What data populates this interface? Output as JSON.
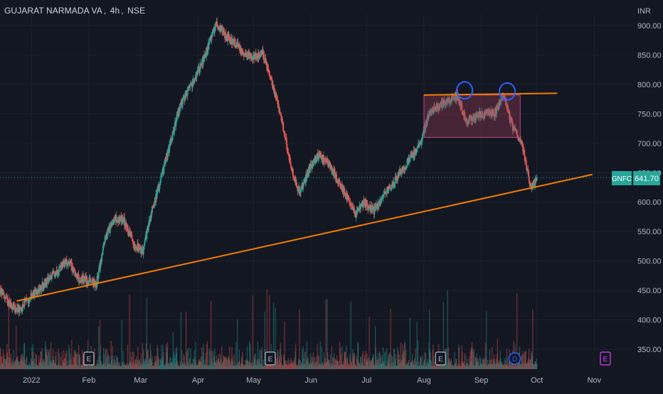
{
  "header": {
    "symbol": "GUJARAT NARMADA VA",
    "interval": "4h",
    "exchange": "NSE"
  },
  "price_axis": {
    "currency": "INR",
    "ticks": [
      "900.00",
      "850.00",
      "800.00",
      "750.00",
      "700.00",
      "650.00",
      "600.00",
      "550.00",
      "500.00",
      "450.00",
      "400.00",
      "350.00"
    ]
  },
  "time_axis": {
    "ticks": [
      "2022",
      "Feb",
      "Mar",
      "Apr",
      "May",
      "Jun",
      "Jul",
      "Aug",
      "Sep",
      "Oct",
      "Nov"
    ]
  },
  "last_price": {
    "ticker": "GNFC",
    "value": "641.70",
    "price": 641.7
  },
  "earnings_markers": [
    {
      "label": "E",
      "date": "2022-02-01",
      "color": "#b2b5be"
    },
    {
      "label": "E",
      "date": "2022-05-10",
      "color": "#b2b5be"
    },
    {
      "label": "E",
      "date": "2022-08-10",
      "color": "#b2b5be"
    },
    {
      "label": "D",
      "date": "2022-09-19",
      "color": "#2962ff"
    },
    {
      "label": "E",
      "date": "2022-11-07",
      "color": "#e040fb"
    }
  ],
  "colors": {
    "background": "#131722",
    "up": "#26a69a",
    "down": "#ef5350",
    "trendline": "#f57c00",
    "box_fill": "#a23b5a",
    "marker_circle": "#2962ff",
    "last_price_bg": "#26a69a"
  },
  "chart_data": {
    "type": "candlestick",
    "title": "GUJARAT NARMADA VA, 4h, NSE",
    "ylabel": "INR",
    "ylim": [
      320,
      925
    ],
    "xlim": [
      "2021-12-15",
      "2022-11-22"
    ],
    "series": [
      {
        "date": "2021-12-15",
        "close": 450
      },
      {
        "date": "2021-12-20",
        "close": 428
      },
      {
        "date": "2021-12-25",
        "close": 415
      },
      {
        "date": "2022-01-01",
        "close": 440
      },
      {
        "date": "2022-01-06",
        "close": 455
      },
      {
        "date": "2022-01-11",
        "close": 470
      },
      {
        "date": "2022-01-16",
        "close": 488
      },
      {
        "date": "2022-01-21",
        "close": 500
      },
      {
        "date": "2022-01-26",
        "close": 472
      },
      {
        "date": "2022-01-31",
        "close": 467
      },
      {
        "date": "2022-02-05",
        "close": 460
      },
      {
        "date": "2022-02-10",
        "close": 540
      },
      {
        "date": "2022-02-15",
        "close": 572
      },
      {
        "date": "2022-02-20",
        "close": 568
      },
      {
        "date": "2022-02-25",
        "close": 530
      },
      {
        "date": "2022-03-02",
        "close": 515
      },
      {
        "date": "2022-03-07",
        "close": 585
      },
      {
        "date": "2022-03-12",
        "close": 640
      },
      {
        "date": "2022-03-17",
        "close": 700
      },
      {
        "date": "2022-03-22",
        "close": 760
      },
      {
        "date": "2022-03-27",
        "close": 790
      },
      {
        "date": "2022-04-01",
        "close": 820
      },
      {
        "date": "2022-04-06",
        "close": 860
      },
      {
        "date": "2022-04-11",
        "close": 905
      },
      {
        "date": "2022-04-16",
        "close": 882
      },
      {
        "date": "2022-04-21",
        "close": 870
      },
      {
        "date": "2022-04-26",
        "close": 852
      },
      {
        "date": "2022-05-01",
        "close": 848
      },
      {
        "date": "2022-05-06",
        "close": 852
      },
      {
        "date": "2022-05-11",
        "close": 802
      },
      {
        "date": "2022-05-16",
        "close": 745
      },
      {
        "date": "2022-05-21",
        "close": 660
      },
      {
        "date": "2022-05-26",
        "close": 615
      },
      {
        "date": "2022-05-31",
        "close": 655
      },
      {
        "date": "2022-06-05",
        "close": 680
      },
      {
        "date": "2022-06-10",
        "close": 668
      },
      {
        "date": "2022-06-15",
        "close": 640
      },
      {
        "date": "2022-06-20",
        "close": 612
      },
      {
        "date": "2022-06-25",
        "close": 580
      },
      {
        "date": "2022-06-30",
        "close": 600
      },
      {
        "date": "2022-07-05",
        "close": 585
      },
      {
        "date": "2022-07-10",
        "close": 612
      },
      {
        "date": "2022-07-15",
        "close": 630
      },
      {
        "date": "2022-07-20",
        "close": 655
      },
      {
        "date": "2022-07-25",
        "close": 675
      },
      {
        "date": "2022-07-30",
        "close": 700
      },
      {
        "date": "2022-08-04",
        "close": 752
      },
      {
        "date": "2022-08-09",
        "close": 762
      },
      {
        "date": "2022-08-14",
        "close": 772
      },
      {
        "date": "2022-08-19",
        "close": 780
      },
      {
        "date": "2022-08-24",
        "close": 738
      },
      {
        "date": "2022-08-29",
        "close": 745
      },
      {
        "date": "2022-09-03",
        "close": 752
      },
      {
        "date": "2022-09-08",
        "close": 750
      },
      {
        "date": "2022-09-13",
        "close": 782
      },
      {
        "date": "2022-09-18",
        "close": 728
      },
      {
        "date": "2022-09-23",
        "close": 700
      },
      {
        "date": "2022-09-28",
        "close": 622
      },
      {
        "date": "2022-10-01",
        "close": 641.7
      }
    ]
  },
  "drawings": {
    "support_line": {
      "from": {
        "date": "2021-12-24",
        "price": 432
      },
      "to": {
        "date": "2022-10-31",
        "price": 647
      }
    },
    "resistance_line": {
      "from": {
        "date": "2022-08-01",
        "price": 782
      },
      "to": {
        "date": "2022-10-12",
        "price": 785
      }
    },
    "range_box": {
      "from": {
        "date": "2022-08-01",
        "price": 782
      },
      "to": {
        "date": "2022-09-22",
        "price": 710
      }
    },
    "top_circles": [
      {
        "date": "2022-08-23",
        "price": 790
      },
      {
        "date": "2022-09-15",
        "price": 788
      }
    ]
  }
}
